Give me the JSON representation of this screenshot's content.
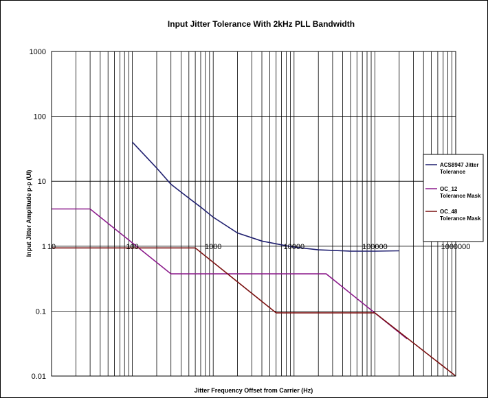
{
  "chart_data": {
    "type": "line",
    "title": "Input Jitter Tolerance With 2kHz PLL Bandwidth",
    "xlabel": "Jitter Frequency Offset from Carrier (Hz)",
    "ylabel": "Input Jitter Amplitude p-p (UI)",
    "x_scale": "log",
    "y_scale": "log",
    "xlim": [
      10,
      1000000
    ],
    "ylim": [
      0.01,
      1000
    ],
    "x_ticks": [
      "10",
      "100",
      "1000",
      "10000",
      "100000",
      "1000000"
    ],
    "y_ticks": [
      "1000",
      "100",
      "10",
      "1",
      "0.1",
      "0.01"
    ],
    "grid": true,
    "legend_position": "right",
    "series": [
      {
        "name_bold": "ACS8947",
        "name_rest": "Jitter",
        "name_line2": "Tolerance",
        "color": "#1f1f6f",
        "x": [
          100,
          200,
          300,
          500,
          700,
          1000,
          2000,
          4000,
          7000,
          10000,
          20000,
          50000,
          100000,
          200000
        ],
        "y": [
          40,
          16,
          9,
          5.5,
          4,
          2.8,
          1.6,
          1.2,
          1.05,
          0.97,
          0.88,
          0.84,
          0.84,
          0.85
        ]
      },
      {
        "name_bold": "OC_12",
        "name_rest": "",
        "name_line2": "Tolerance Mask",
        "color": "#8b1a8b",
        "x": [
          10,
          30,
          300,
          25000,
          250000
        ],
        "y": [
          3.75,
          3.75,
          0.375,
          0.375,
          0.0375
        ]
      },
      {
        "name_bold": "OC_48",
        "name_rest": "",
        "name_line2": "Tolerance Mask",
        "color": "#7a1010",
        "x": [
          10,
          600,
          6000,
          100000,
          1000000
        ],
        "y": [
          0.94,
          0.94,
          0.094,
          0.094,
          0.01
        ]
      }
    ]
  }
}
